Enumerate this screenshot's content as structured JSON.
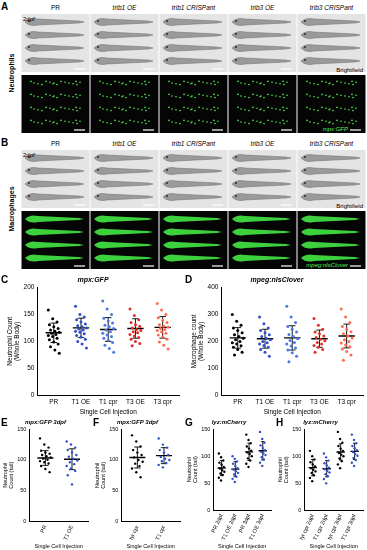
{
  "images": {
    "panels": [
      {
        "panel": "A",
        "row_label": "Neutrophils",
        "age": "2dpf",
        "columns": [
          "PR",
          "trib1 OE",
          "trib1 CRISPant",
          "trib3 OE",
          "trib3 CRISPant"
        ],
        "channels": [
          "Brightfield",
          "mpx:GFP"
        ]
      },
      {
        "panel": "B",
        "row_label": "Macrophages",
        "age": "2dpf",
        "columns": [
          "PR",
          "trib1 OE",
          "trib1 CRISPant",
          "trib3 OE",
          "trib3 CRISPant"
        ],
        "channels": [
          "Brightfield",
          "mpeg:nlsClover"
        ]
      }
    ]
  },
  "chart_data": [
    {
      "type": "scatter",
      "panel": "C",
      "title": "mpx:GFP",
      "y_label": [
        "Neutrophil Count",
        "(Whole Body)"
      ],
      "x_label": "Single Cell Injection",
      "categories": [
        "PR",
        "T1 OE",
        "T1 cpr",
        "T3 OE",
        "T3 cpr"
      ],
      "colors": [
        "#000000",
        "#2f4fc8",
        "#4a7ae0",
        "#e0302a",
        "#ff6a50"
      ],
      "values": [
        [
          158,
          142,
          136,
          131,
          127,
          124,
          121,
          119,
          117,
          115,
          113,
          111,
          109,
          106,
          103,
          99,
          95,
          90,
          84,
          78
        ],
        [
          165,
          150,
          145,
          140,
          136,
          132,
          129,
          127,
          125,
          123,
          121,
          119,
          117,
          114,
          111,
          108,
          104,
          100,
          95,
          88
        ],
        [
          175,
          160,
          150,
          143,
          138,
          134,
          130,
          127,
          124,
          121,
          118,
          115,
          112,
          109,
          106,
          102,
          98,
          93,
          87,
          80
        ],
        [
          160,
          148,
          140,
          135,
          131,
          128,
          125,
          122,
          120,
          118,
          116,
          113,
          110,
          107,
          104,
          100,
          96,
          92
        ],
        [
          170,
          158,
          150,
          144,
          139,
          135,
          131,
          128,
          126,
          124,
          122,
          120,
          118,
          115,
          112,
          108,
          104,
          99,
          93,
          86
        ]
      ],
      "means": [
        116,
        125,
        122,
        124,
        126
      ],
      "errors": [
        18,
        18,
        22,
        18,
        20
      ],
      "ylim": [
        0,
        200
      ],
      "yticks": [
        0,
        50,
        100,
        150,
        200
      ],
      "grid": false
    },
    {
      "type": "scatter",
      "panel": "D",
      "title": "mpeg:nlsClover",
      "y_label": [
        "Macrophage count",
        "(Whole Body)"
      ],
      "x_label": "Single Cell Injection",
      "categories": [
        "PR",
        "T1 OE",
        "T1 cpr",
        "T3 OE",
        "T3 cpr"
      ],
      "colors": [
        "#000000",
        "#2f4fc8",
        "#4a7ae0",
        "#e0302a",
        "#ff6a50"
      ],
      "values": [
        [
          300,
          275,
          260,
          250,
          240,
          232,
          225,
          218,
          212,
          206,
          200,
          195,
          190,
          184,
          178,
          170,
          160,
          150
        ],
        [
          290,
          265,
          250,
          240,
          232,
          225,
          218,
          212,
          206,
          200,
          195,
          190,
          185,
          178,
          170,
          160,
          145
        ],
        [
          330,
          290,
          270,
          255,
          245,
          235,
          226,
          218,
          210,
          203,
          196,
          190,
          183,
          176,
          168,
          158,
          145,
          125
        ],
        [
          285,
          260,
          245,
          235,
          228,
          220,
          214,
          208,
          202,
          196,
          190,
          185,
          178,
          170,
          160
        ],
        [
          320,
          290,
          270,
          255,
          245,
          236,
          228,
          220,
          213,
          206,
          200,
          194,
          187,
          180,
          172,
          163,
          150,
          130
        ]
      ],
      "means": [
        213,
        210,
        213,
        210,
        220
      ],
      "errors": [
        38,
        35,
        45,
        32,
        44
      ],
      "ylim": [
        0,
        400
      ],
      "yticks": [
        0,
        100,
        200,
        300,
        400
      ],
      "grid": false
    },
    {
      "type": "scatter",
      "panel": "E",
      "title": "mpx:GFP 3dpf",
      "y_label": [
        "Neutrophil",
        "Count (tail)"
      ],
      "x_label": "Single Cell Injection",
      "categories": [
        "PR",
        "T1 OE"
      ],
      "colors": [
        "#000000",
        "#2f4fc8"
      ],
      "values": [
        [
          135,
          125,
          120,
          115,
          112,
          110,
          108,
          106,
          104,
          102,
          100,
          98,
          96,
          94,
          90,
          85,
          80
        ],
        [
          130,
          125,
          120,
          116,
          112,
          108,
          105,
          102,
          99,
          96,
          93,
          90,
          86,
          82,
          75,
          60
        ]
      ],
      "means": [
        103,
        101
      ],
      "errors": [
        12,
        17
      ],
      "ylim": [
        0,
        150
      ],
      "yticks": [
        0,
        50,
        100,
        150
      ],
      "grid": false
    },
    {
      "type": "scatter",
      "panel": "F",
      "title": "mpx:GFP 3dpf",
      "y_label": [
        "Neutrophil",
        "Count (tail)"
      ],
      "x_label": "Single Cell Injection",
      "categories": [
        "tyr cpr",
        "T1 cpr"
      ],
      "colors": [
        "#000000",
        "#2f4fc8"
      ],
      "values": [
        [
          140,
          130,
          122,
          116,
          112,
          108,
          104,
          100,
          97,
          94,
          90,
          86,
          80,
          72
        ],
        [
          135,
          125,
          120,
          116,
          112,
          108,
          105,
          102,
          100,
          98,
          95,
          92,
          88
        ]
      ],
      "means": [
        104,
        107
      ],
      "errors": [
        17,
        13
      ],
      "ylim": [
        0,
        150
      ],
      "yticks": [
        0,
        50,
        100,
        150
      ],
      "grid": false
    },
    {
      "type": "scatter",
      "panel": "G",
      "title": "lyz:mCherry",
      "y_label": [
        "Neutrophil",
        "Count (tail)"
      ],
      "x_label": "Single Cell Injection",
      "categories": [
        "PR 2dpf",
        "T1 OE 2dpf",
        "PR 3dpf",
        "T1 OE 3dpf"
      ],
      "colors": [
        "#000000",
        "#2f4fc8",
        "#000000",
        "#2f4fc8"
      ],
      "values": [
        [
          105,
          98,
          92,
          88,
          84,
          80,
          77,
          74,
          71,
          68,
          65,
          60,
          55
        ],
        [
          100,
          95,
          90,
          86,
          82,
          78,
          75,
          72,
          69,
          66,
          62,
          58,
          52
        ],
        [
          140,
          130,
          124,
          118,
          114,
          110,
          107,
          104,
          100,
          96,
          92,
          86,
          80
        ],
        [
          145,
          132,
          125,
          120,
          115,
          111,
          108,
          105,
          102,
          98,
          94,
          88,
          82
        ]
      ],
      "means": [
        78,
        76,
        108,
        110
      ],
      "errors": [
        14,
        14,
        16,
        17
      ],
      "ylim": [
        0,
        150
      ],
      "yticks": [
        0,
        50,
        100,
        150
      ],
      "grid": false
    },
    {
      "type": "scatter",
      "panel": "H",
      "title": "lyz:mCherry",
      "y_label": [
        "Neutrophil",
        "Count (tail)"
      ],
      "x_label": "Single Cell Injection",
      "categories": [
        "tyr cpr 2dpf",
        "T1 cpr 2dpf",
        "tyr cpr 3dpf",
        "T1 cpr 3dpf"
      ],
      "colors": [
        "#000000",
        "#2f4fc8",
        "#000000",
        "#2f4fc8"
      ],
      "values": [
        [
          110,
          100,
          94,
          89,
          85,
          81,
          78,
          75,
          72,
          69,
          65,
          60,
          54
        ],
        [
          105,
          98,
          92,
          87,
          83,
          79,
          76,
          73,
          70,
          67,
          63,
          58,
          50
        ],
        [
          145,
          132,
          125,
          119,
          114,
          110,
          106,
          103,
          100,
          96,
          91,
          85,
          78
        ],
        [
          140,
          130,
          124,
          119,
          115,
          111,
          108,
          104,
          101,
          97,
          93,
          88,
          82
        ]
      ],
      "means": [
        79,
        77,
        108,
        109
      ],
      "errors": [
        15,
        15,
        15,
        15
      ],
      "ylim": [
        0,
        150
      ],
      "yticks": [
        0,
        50,
        100,
        150
      ],
      "grid": false
    }
  ]
}
